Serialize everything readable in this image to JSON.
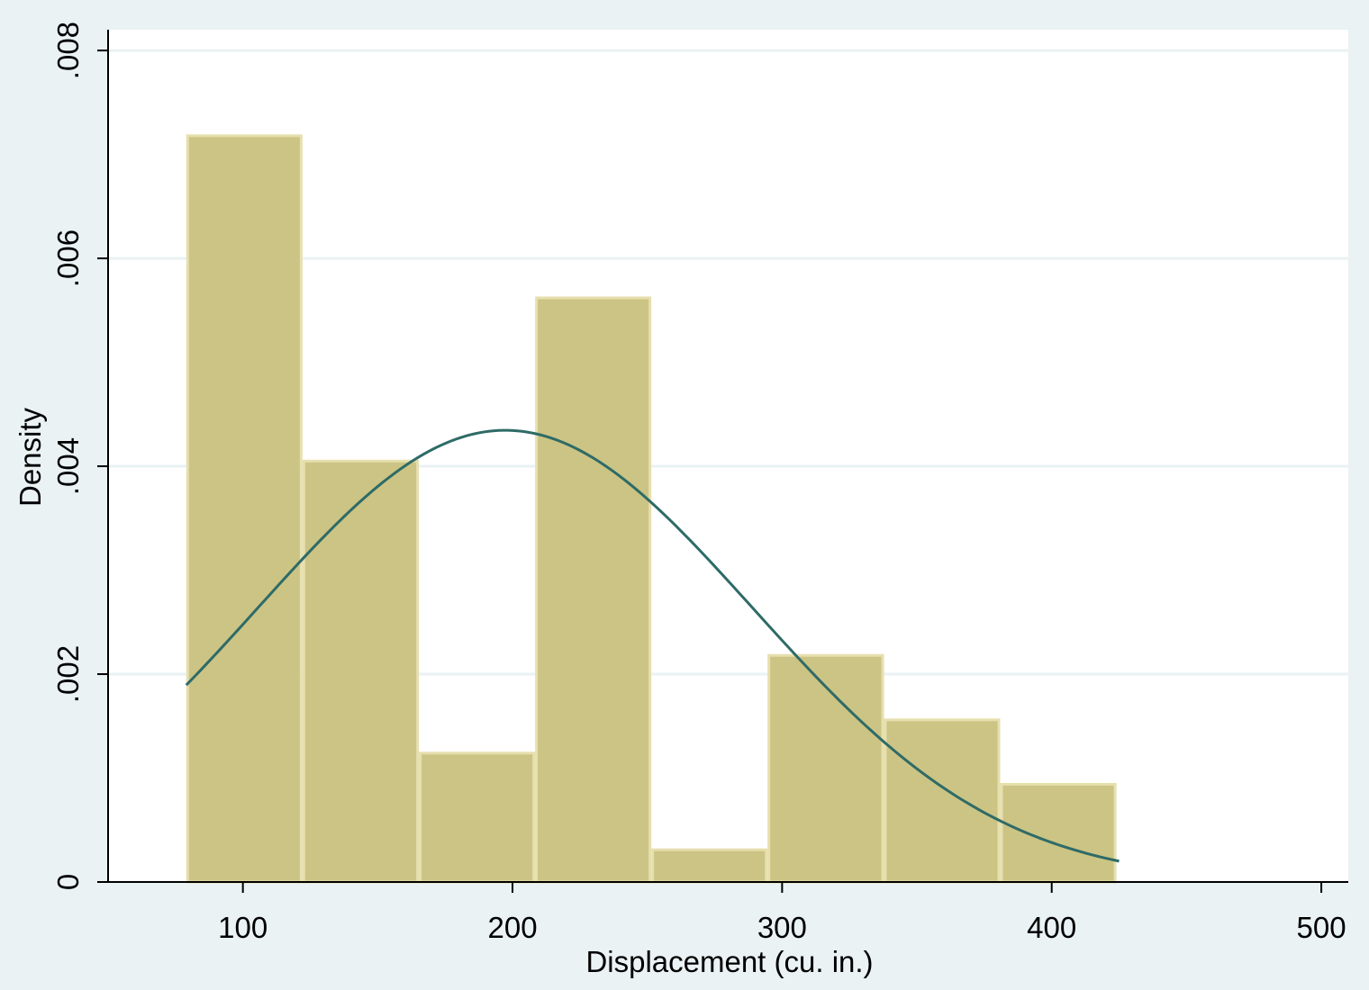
{
  "chart_data": {
    "type": "histogram",
    "title": "",
    "xlabel": "Displacement (cu. in.)",
    "ylabel": "Density",
    "xlim": [
      50,
      510
    ],
    "ylim": [
      0,
      0.0082
    ],
    "x_ticks": [
      {
        "value": 100,
        "label": "100"
      },
      {
        "value": 200,
        "label": "200"
      },
      {
        "value": 300,
        "label": "300"
      },
      {
        "value": 400,
        "label": "400"
      },
      {
        "value": 500,
        "label": "500"
      }
    ],
    "y_ticks": [
      {
        "value": 0,
        "label": "0"
      },
      {
        "value": 0.002,
        "label": ".002"
      },
      {
        "value": 0.004,
        "label": ".004"
      },
      {
        "value": 0.006,
        "label": ".006"
      },
      {
        "value": 0.008,
        "label": ".008"
      }
    ],
    "grid": true,
    "bins": [
      {
        "start": 79,
        "end": 122.1,
        "density": 0.00718
      },
      {
        "start": 122.1,
        "end": 165.3,
        "density": 0.00405
      },
      {
        "start": 165.3,
        "end": 208.4,
        "density": 0.00124
      },
      {
        "start": 208.4,
        "end": 251.5,
        "density": 0.00562
      },
      {
        "start": 251.5,
        "end": 294.6,
        "density": 0.00031
      },
      {
        "start": 294.6,
        "end": 337.8,
        "density": 0.00218
      },
      {
        "start": 337.8,
        "end": 380.9,
        "density": 0.00156
      },
      {
        "start": 380.9,
        "end": 424,
        "density": 0.00094
      }
    ],
    "normal_curve": {
      "mean": 197.3,
      "sd": 91.8,
      "x_range": [
        79,
        425
      ]
    },
    "colors": {
      "background": "#eaf2f3",
      "plot_background": "#ffffff",
      "grid": "#eaf2f3",
      "bar_fill": "#ccc484",
      "bar_stroke": "#e6dfae",
      "curve": "#2e6b67",
      "axis": "#000000"
    }
  }
}
